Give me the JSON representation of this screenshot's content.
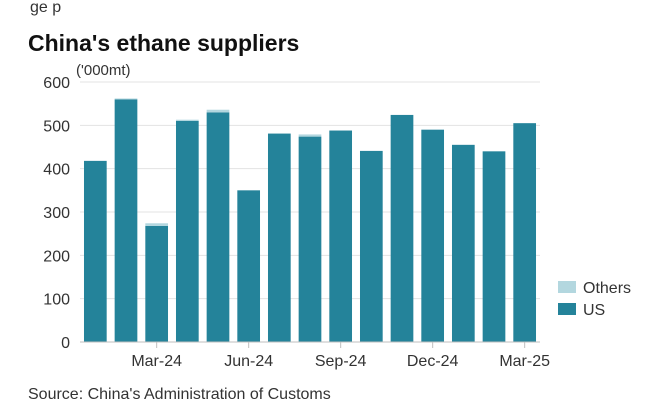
{
  "top_caption": "ge                                          p",
  "colors": {
    "US": "#24839a",
    "Others": "#b3d7df"
  },
  "chart_data": {
    "type": "bar",
    "stacked": true,
    "title": "China's ethane suppliers",
    "subtitle": "",
    "unit_label": "('000mt)",
    "xlabel": "",
    "ylabel": "",
    "ylim": [
      0,
      600
    ],
    "yticks": [
      0,
      100,
      200,
      300,
      400,
      500,
      600
    ],
    "grid": true,
    "legend_position": "right",
    "categories": [
      "Jan-24",
      "Feb-24",
      "Mar-24",
      "Apr-24",
      "May-24",
      "Jun-24",
      "Jul-24",
      "Aug-24",
      "Sep-24",
      "Oct-24",
      "Nov-24",
      "Dec-24",
      "Jan-25",
      "Feb-25",
      "Mar-25"
    ],
    "tick_labels": [
      "",
      "",
      "Mar-24",
      "",
      "",
      "Jun-24",
      "",
      "",
      "Sep-24",
      "",
      "",
      "Dec-24",
      "",
      "",
      "Mar-25"
    ],
    "series": [
      {
        "name": "US",
        "values": [
          418,
          560,
          268,
          510,
          530,
          350,
          481,
          474,
          488,
          441,
          524,
          490,
          455,
          440,
          505
        ]
      },
      {
        "name": "Others",
        "values": [
          0,
          2,
          6,
          3,
          6,
          0,
          0,
          5,
          0,
          0,
          0,
          0,
          0,
          0,
          0
        ]
      }
    ],
    "legend": [
      "Others",
      "US"
    ]
  },
  "source": "Source: China's Administration of Customs"
}
